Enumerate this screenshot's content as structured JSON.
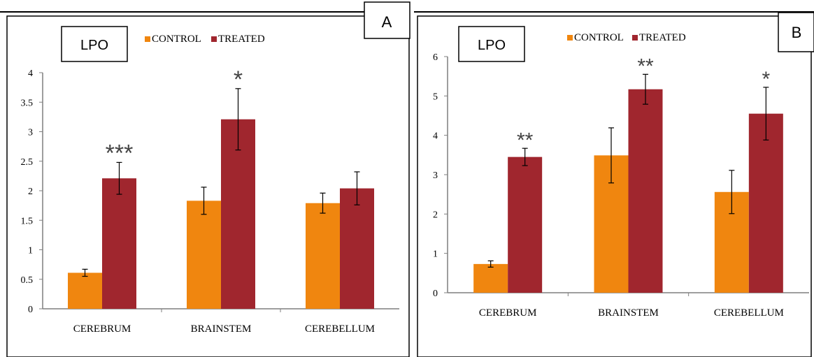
{
  "colors": {
    "control": "#F0860F",
    "treated": "#A0262E",
    "axis": "#7f7f7f",
    "text": "#000000",
    "sig": "#444444"
  },
  "panels": [
    {
      "panel_label": "A",
      "box_label": "LPO",
      "chart_data": {
        "type": "bar",
        "categories": [
          "CEREBRUM",
          "BRAINSTEM",
          "CEREBELLUM"
        ],
        "series": [
          {
            "name": "CONTROL",
            "values": [
              0.61,
              1.83,
              1.79
            ],
            "errors": [
              0.06,
              0.23,
              0.17
            ]
          },
          {
            "name": "TREATED",
            "values": [
              2.21,
              3.21,
              2.04
            ],
            "errors": [
              0.27,
              0.52,
              0.28
            ]
          }
        ],
        "significance": [
          "***",
          "*",
          ""
        ],
        "ylim": [
          0,
          4
        ],
        "yticks": [
          "0",
          "0.5",
          "1",
          "1.5",
          "2",
          "2.5",
          "3",
          "3.5",
          "4"
        ],
        "legend": "top",
        "grid": false
      }
    },
    {
      "panel_label": "B",
      "box_label": "LPO",
      "chart_data": {
        "type": "bar",
        "categories": [
          "CEREBRUM",
          "BRAINSTEM",
          "CEREBELLUM"
        ],
        "series": [
          {
            "name": "CONTROL",
            "values": [
              0.73,
              3.49,
              2.56
            ],
            "errors": [
              0.08,
              0.7,
              0.55
            ]
          },
          {
            "name": "TREATED",
            "values": [
              3.45,
              5.17,
              4.55
            ],
            "errors": [
              0.22,
              0.38,
              0.67
            ]
          }
        ],
        "significance": [
          "**",
          "**",
          "*"
        ],
        "ylim": [
          0,
          6
        ],
        "yticks": [
          "0",
          "1",
          "2",
          "3",
          "4",
          "5",
          "6"
        ],
        "legend": "top",
        "grid": false
      }
    }
  ]
}
